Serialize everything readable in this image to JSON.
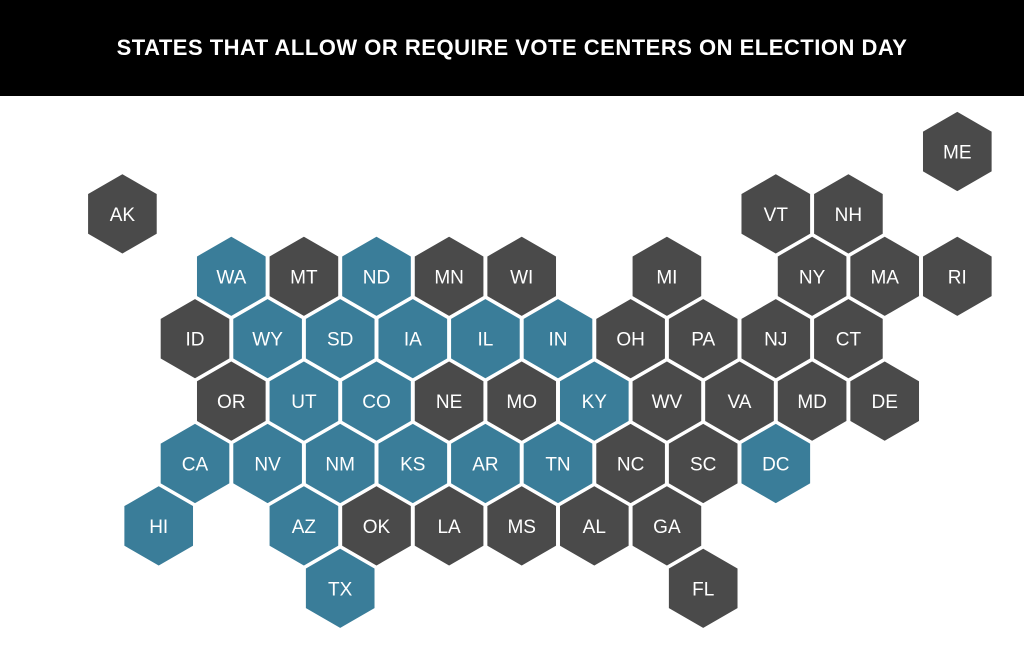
{
  "title": "STATES THAT ALLOW OR REQUIRE VOTE CENTERS ON ELECTION DAY",
  "colors": {
    "allowed": "#3a7d99",
    "not_allowed": "#4a4a4a",
    "title_bg": "#000000",
    "title_text": "#ffffff",
    "hex_stroke": "#ffffff",
    "label": "#ffffff"
  },
  "states": [
    {
      "abbr": "ME",
      "row": 0,
      "col": 11,
      "vote_centers": false
    },
    {
      "abbr": "AK",
      "row": 1,
      "col": 0,
      "vote_centers": false
    },
    {
      "abbr": "VT",
      "row": 1,
      "col": 9,
      "vote_centers": false
    },
    {
      "abbr": "NH",
      "row": 1,
      "col": 10,
      "vote_centers": false
    },
    {
      "abbr": "WA",
      "row": 2,
      "col": 1,
      "vote_centers": true
    },
    {
      "abbr": "MT",
      "row": 2,
      "col": 2,
      "vote_centers": false
    },
    {
      "abbr": "ND",
      "row": 2,
      "col": 3,
      "vote_centers": true
    },
    {
      "abbr": "MN",
      "row": 2,
      "col": 4,
      "vote_centers": false
    },
    {
      "abbr": "WI",
      "row": 2,
      "col": 5,
      "vote_centers": false
    },
    {
      "abbr": "MI",
      "row": 2,
      "col": 7,
      "vote_centers": false
    },
    {
      "abbr": "NY",
      "row": 2,
      "col": 9,
      "vote_centers": false
    },
    {
      "abbr": "MA",
      "row": 2,
      "col": 10,
      "vote_centers": false
    },
    {
      "abbr": "RI",
      "row": 2,
      "col": 11,
      "vote_centers": false
    },
    {
      "abbr": "ID",
      "row": 3,
      "col": 1,
      "vote_centers": false
    },
    {
      "abbr": "WY",
      "row": 3,
      "col": 2,
      "vote_centers": true
    },
    {
      "abbr": "SD",
      "row": 3,
      "col": 3,
      "vote_centers": true
    },
    {
      "abbr": "IA",
      "row": 3,
      "col": 4,
      "vote_centers": true
    },
    {
      "abbr": "IL",
      "row": 3,
      "col": 5,
      "vote_centers": true
    },
    {
      "abbr": "IN",
      "row": 3,
      "col": 6,
      "vote_centers": true
    },
    {
      "abbr": "OH",
      "row": 3,
      "col": 7,
      "vote_centers": false
    },
    {
      "abbr": "PA",
      "row": 3,
      "col": 8,
      "vote_centers": false
    },
    {
      "abbr": "NJ",
      "row": 3,
      "col": 9,
      "vote_centers": false
    },
    {
      "abbr": "CT",
      "row": 3,
      "col": 10,
      "vote_centers": false
    },
    {
      "abbr": "OR",
      "row": 4,
      "col": 1,
      "vote_centers": false
    },
    {
      "abbr": "UT",
      "row": 4,
      "col": 2,
      "vote_centers": true
    },
    {
      "abbr": "CO",
      "row": 4,
      "col": 3,
      "vote_centers": true
    },
    {
      "abbr": "NE",
      "row": 4,
      "col": 4,
      "vote_centers": false
    },
    {
      "abbr": "MO",
      "row": 4,
      "col": 5,
      "vote_centers": false
    },
    {
      "abbr": "KY",
      "row": 4,
      "col": 6,
      "vote_centers": true
    },
    {
      "abbr": "WV",
      "row": 4,
      "col": 7,
      "vote_centers": false
    },
    {
      "abbr": "VA",
      "row": 4,
      "col": 8,
      "vote_centers": false
    },
    {
      "abbr": "MD",
      "row": 4,
      "col": 9,
      "vote_centers": false
    },
    {
      "abbr": "DE",
      "row": 4,
      "col": 10,
      "vote_centers": false
    },
    {
      "abbr": "CA",
      "row": 5,
      "col": 1,
      "vote_centers": true
    },
    {
      "abbr": "NV",
      "row": 5,
      "col": 2,
      "vote_centers": true
    },
    {
      "abbr": "NM",
      "row": 5,
      "col": 3,
      "vote_centers": true
    },
    {
      "abbr": "KS",
      "row": 5,
      "col": 4,
      "vote_centers": true
    },
    {
      "abbr": "AR",
      "row": 5,
      "col": 5,
      "vote_centers": true
    },
    {
      "abbr": "TN",
      "row": 5,
      "col": 6,
      "vote_centers": true
    },
    {
      "abbr": "NC",
      "row": 5,
      "col": 7,
      "vote_centers": false
    },
    {
      "abbr": "SC",
      "row": 5,
      "col": 8,
      "vote_centers": false
    },
    {
      "abbr": "DC",
      "row": 5,
      "col": 9,
      "vote_centers": true
    },
    {
      "abbr": "HI",
      "row": 6,
      "col": 0,
      "vote_centers": true
    },
    {
      "abbr": "AZ",
      "row": 6,
      "col": 2,
      "vote_centers": true
    },
    {
      "abbr": "OK",
      "row": 6,
      "col": 3,
      "vote_centers": false
    },
    {
      "abbr": "LA",
      "row": 6,
      "col": 4,
      "vote_centers": false
    },
    {
      "abbr": "MS",
      "row": 6,
      "col": 5,
      "vote_centers": false
    },
    {
      "abbr": "AL",
      "row": 6,
      "col": 6,
      "vote_centers": false
    },
    {
      "abbr": "GA",
      "row": 6,
      "col": 7,
      "vote_centers": false
    },
    {
      "abbr": "TX",
      "row": 7,
      "col": 3,
      "vote_centers": true
    },
    {
      "abbr": "FL",
      "row": 7,
      "col": 8,
      "vote_centers": false
    }
  ]
}
